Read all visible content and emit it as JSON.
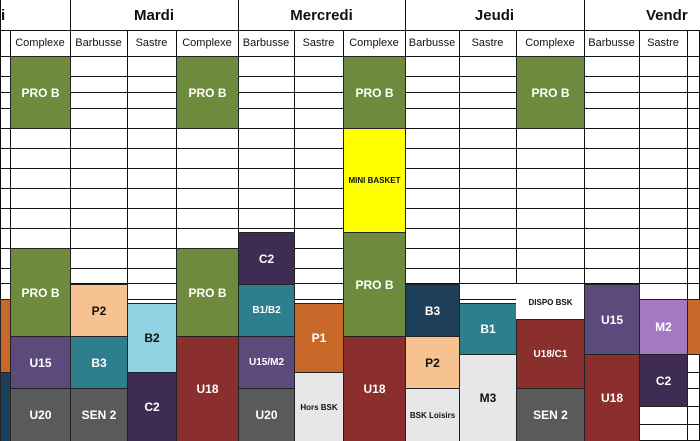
{
  "colors": {
    "olive_green": "#6E8B3D",
    "dark_purple": "#3E2C52",
    "teal": "#2E7F8E",
    "purple": "#5C4A7C",
    "dark_red": "#8B2E2E",
    "gray": "#5A5A5A",
    "light_orange": "#F6C28F",
    "light_blue": "#8FD3E3",
    "light_gray": "#E7E7E7",
    "yellow": "#FFFF00",
    "lilac": "#A678C4",
    "orange": "#C8692A",
    "navy": "#1E3F5A"
  },
  "days": [
    {
      "label": "i"
    },
    {
      "label": "Mardi"
    },
    {
      "label": "Mercredi"
    },
    {
      "label": "Jeudi"
    },
    {
      "label": "Vendr"
    }
  ],
  "columns": [
    {
      "label": ""
    },
    {
      "label": "Complexe"
    },
    {
      "label": "Barbusse"
    },
    {
      "label": "Sastre"
    },
    {
      "label": "Complexe"
    },
    {
      "label": "Barbusse"
    },
    {
      "label": "Sastre"
    },
    {
      "label": "Complexe"
    },
    {
      "label": "Barbusse"
    },
    {
      "label": "Sastre"
    },
    {
      "label": "Complexe"
    },
    {
      "label": "Barbusse"
    },
    {
      "label": "Sastre"
    },
    {
      "label": ""
    }
  ],
  "blocks": [
    {
      "label": "PRO B",
      "col": 1,
      "color": "olive_green",
      "text_color": "#ffffff"
    },
    {
      "label": "PRO B",
      "col": 4,
      "color": "olive_green",
      "text_color": "#ffffff"
    },
    {
      "label": "PRO B",
      "col": 7,
      "color": "olive_green",
      "text_color": "#ffffff"
    },
    {
      "label": "PRO B",
      "col": 10,
      "color": "olive_green",
      "text_color": "#ffffff"
    },
    {
      "label": "MINI BASKET",
      "col": 7,
      "color": "yellow",
      "text_color": "#111111"
    },
    {
      "label": "PRO B",
      "col": 1,
      "color": "olive_green",
      "text_color": "#ffffff"
    },
    {
      "label": "PRO B",
      "col": 4,
      "color": "olive_green",
      "text_color": "#ffffff"
    },
    {
      "label": "PRO B",
      "col": 7,
      "color": "olive_green",
      "text_color": "#ffffff"
    },
    {
      "label": "C2",
      "col": 5,
      "color": "dark_purple",
      "text_color": "#ffffff"
    },
    {
      "label": "B1/B2",
      "col": 5,
      "color": "teal",
      "text_color": "#ffffff"
    },
    {
      "label": "U15/M2",
      "col": 5,
      "color": "purple",
      "text_color": "#ffffff"
    },
    {
      "label": "U20",
      "col": 5,
      "color": "gray",
      "text_color": "#ffffff"
    },
    {
      "label": "P2",
      "col": 2,
      "color": "light_orange",
      "text_color": "#111111"
    },
    {
      "label": "B3",
      "col": 2,
      "color": "teal",
      "text_color": "#ffffff"
    },
    {
      "label": "SEN 2",
      "col": 2,
      "color": "gray",
      "text_color": "#ffffff"
    },
    {
      "label": "B2",
      "col": 3,
      "color": "light_blue",
      "text_color": "#111111"
    },
    {
      "label": "C2",
      "col": 3,
      "color": "dark_purple",
      "text_color": "#ffffff"
    },
    {
      "label": "U15",
      "col": 1,
      "color": "purple",
      "text_color": "#ffffff"
    },
    {
      "label": "U20",
      "col": 1,
      "color": "gray",
      "text_color": "#ffffff"
    },
    {
      "label": "U18",
      "col": 4,
      "color": "dark_red",
      "text_color": "#ffffff"
    },
    {
      "label": "P1",
      "col": 6,
      "color": "orange",
      "text_color": "#ffffff"
    },
    {
      "label": "Hors BSK",
      "col": 6,
      "color": "light_gray",
      "text_color": "#111111"
    },
    {
      "label": "U18",
      "col": 7,
      "color": "dark_red",
      "text_color": "#ffffff"
    },
    {
      "label": "B3",
      "col": 8,
      "color": "navy",
      "text_color": "#ffffff"
    },
    {
      "label": "P2",
      "col": 8,
      "color": "light_orange",
      "text_color": "#111111"
    },
    {
      "label": "BSK Loisirs",
      "col": 8,
      "color": "light_gray",
      "text_color": "#111111"
    },
    {
      "label": "B1",
      "col": 9,
      "color": "teal",
      "text_color": "#ffffff"
    },
    {
      "label": "M3",
      "col": 9,
      "color": "light_gray",
      "text_color": "#111111"
    },
    {
      "label": "DISPO BSK",
      "col": 10,
      "color": "white",
      "text_color": "#111111"
    },
    {
      "label": "U18/C1",
      "col": 10,
      "color": "dark_red",
      "text_color": "#ffffff"
    },
    {
      "label": "SEN 2",
      "col": 10,
      "color": "gray",
      "text_color": "#ffffff"
    },
    {
      "label": "U15",
      "col": 11,
      "color": "purple",
      "text_color": "#ffffff"
    },
    {
      "label": "U18",
      "col": 11,
      "color": "dark_red",
      "text_color": "#ffffff"
    },
    {
      "label": "M2",
      "col": 12,
      "color": "lilac",
      "text_color": "#ffffff"
    },
    {
      "label": "C2",
      "col": 12,
      "color": "dark_purple",
      "text_color": "#ffffff"
    },
    {
      "label": "",
      "col": 0,
      "color": "orange",
      "text_color": "#ffffff"
    },
    {
      "label": "",
      "col": 0,
      "color": "navy",
      "text_color": "#ffffff"
    },
    {
      "label": "",
      "col": 13,
      "color": "orange",
      "text_color": "#ffffff"
    }
  ]
}
